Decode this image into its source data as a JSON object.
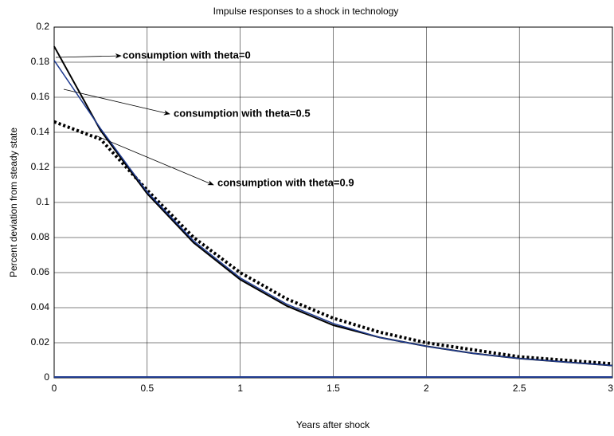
{
  "chart_data": {
    "type": "line",
    "title": "Impulse responses to a shock in technology",
    "xlabel": "Years after shock",
    "ylabel": "Percent deviation from steady state",
    "x": [
      0,
      0.25,
      0.5,
      0.75,
      1,
      1.25,
      1.5,
      1.75,
      2,
      2.25,
      2.5,
      2.75,
      3
    ],
    "series": [
      {
        "name": "consumption with theta=0",
        "color": "#000000",
        "line_style": "solid",
        "width": 2,
        "values": [
          0.189,
          0.141,
          0.105,
          0.077,
          0.056,
          0.041,
          0.03,
          0.023,
          0.018,
          0.014,
          0.011,
          0.009,
          0.007
        ]
      },
      {
        "name": "consumption with theta=0.5",
        "color": "#1f3b8f",
        "line_style": "solid",
        "width": 1.5,
        "values": [
          0.181,
          0.142,
          0.106,
          0.078,
          0.057,
          0.042,
          0.031,
          0.023,
          0.018,
          0.014,
          0.011,
          0.009,
          0.007
        ]
      },
      {
        "name": "consumption with theta=0.9",
        "color": "#000000",
        "line_style": "dotted",
        "width": 4,
        "values": [
          0.146,
          0.136,
          0.107,
          0.08,
          0.06,
          0.045,
          0.034,
          0.026,
          0.02,
          0.016,
          0.012,
          0.01,
          0.008
        ]
      }
    ],
    "xlim": [
      0,
      3
    ],
    "xticks": [
      0,
      0.5,
      1,
      1.5,
      2,
      2.5,
      3
    ],
    "ylim": [
      0,
      0.2
    ],
    "yticks": [
      0,
      0.02,
      0.04,
      0.06,
      0.08,
      0.1,
      0.12,
      0.14,
      0.16,
      0.18,
      0.2
    ],
    "grid": true
  }
}
